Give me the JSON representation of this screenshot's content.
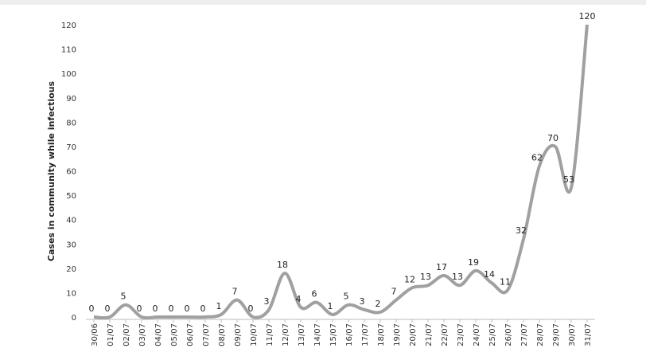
{
  "chart_data": {
    "type": "line",
    "y_label": "Cases in community while infectious",
    "categories": [
      "30/06",
      "01/07",
      "02/07",
      "03/07",
      "04/07",
      "05/07",
      "06/07",
      "07/07",
      "08/07",
      "09/07",
      "10/07",
      "11/07",
      "12/07",
      "13/07",
      "14/07",
      "15/07",
      "16/07",
      "17/07",
      "18/07",
      "19/07",
      "20/07",
      "21/07",
      "22/07",
      "23/07",
      "24/07",
      "25/07",
      "26/07",
      "27/07",
      "28/07",
      "29/07",
      "30/07",
      "31/07"
    ],
    "values": [
      0,
      0,
      5,
      0,
      0,
      0,
      0,
      0,
      1,
      7,
      0,
      3,
      18,
      4,
      6,
      1,
      5,
      3,
      2,
      7,
      12,
      13,
      17,
      13,
      19,
      14,
      11,
      32,
      62,
      70,
      53,
      120
    ],
    "color": "#a0a0a0",
    "ylim": [
      0,
      120
    ],
    "yticks": [
      0,
      10,
      20,
      30,
      40,
      50,
      60,
      70,
      80,
      90,
      100,
      110,
      120
    ],
    "grid": false
  }
}
